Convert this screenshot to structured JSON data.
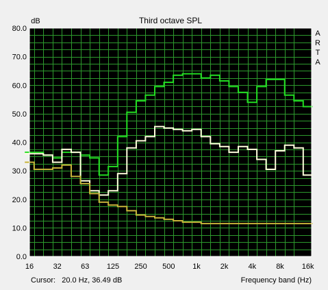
{
  "chart_data": {
    "type": "line",
    "title": "Third octave SPL",
    "ylabel": "dB",
    "xlabel": "Frequency band (Hz)",
    "brand": [
      "A",
      "R",
      "T",
      "A"
    ],
    "cursor_text": "Cursor:   20.0 Hz, 36.49 dB",
    "yticks": [
      "80.0",
      "70.0",
      "60.0",
      "50.0",
      "40.0",
      "30.0",
      "20.0",
      "10.0",
      "0.0"
    ],
    "ylim": [
      0,
      80
    ],
    "xticks": [
      "16",
      "32",
      "63",
      "125",
      "250",
      "500",
      "1k",
      "2k",
      "4k",
      "8k",
      "16k"
    ],
    "x_scale": "log2 frequency (third-octave bands)",
    "grid": true,
    "colors": {
      "plot_background": "#000000",
      "grid": "#2d9a2d",
      "frame": "#ffffff",
      "window_background": "#f0f0f0"
    },
    "bands_hz": [
      16,
      20,
      25,
      31.5,
      40,
      50,
      63,
      80,
      100,
      125,
      160,
      200,
      250,
      315,
      400,
      500,
      630,
      800,
      1000,
      1250,
      1600,
      2000,
      2500,
      3150,
      4000,
      5000,
      6300,
      8000,
      10000,
      12500,
      16000
    ],
    "series": [
      {
        "color": "#22dd22",
        "values": [
          36.5,
          36.5,
          35.5,
          34.5,
          36.5,
          36.5,
          35.5,
          34.5,
          28.5,
          31.5,
          42,
          50.5,
          54.5,
          56.5,
          59.5,
          61,
          63.5,
          64,
          64,
          62.5,
          63.5,
          61.5,
          59.5,
          57.5,
          54,
          59.5,
          62,
          62,
          56.5,
          54.5,
          52.5
        ]
      },
      {
        "color": "#ffffdd",
        "values": [
          36,
          36,
          35.5,
          33,
          37.5,
          36.5,
          26.5,
          23,
          21.5,
          23,
          29,
          38,
          40.5,
          42,
          45.5,
          45,
          44.5,
          44,
          44.5,
          42,
          39.5,
          38.5,
          36.5,
          38.5,
          37.5,
          34,
          30.5,
          37,
          39,
          38,
          28.5
        ]
      },
      {
        "color": "#c8b43a",
        "values": [
          33,
          30.5,
          30.5,
          31,
          32,
          28,
          25.5,
          22,
          19,
          18,
          17.5,
          16,
          14.5,
          14,
          13.5,
          13,
          12.5,
          12,
          12,
          11.5,
          11.5,
          11.5,
          11.5,
          11.5,
          11.5,
          11.5,
          11.5,
          11.5,
          11.5,
          11.5,
          11.5
        ]
      }
    ]
  }
}
